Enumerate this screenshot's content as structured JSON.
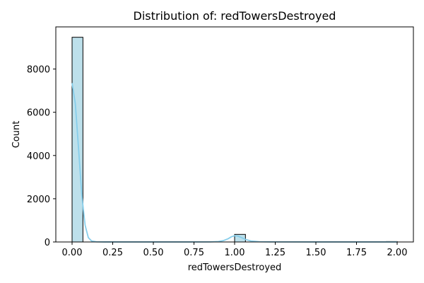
{
  "chart_data": {
    "type": "bar",
    "title": "Distribution of: redTowersDestroyed",
    "xlabel": "redTowersDestroyed",
    "ylabel": "Count",
    "xlim": [
      -0.1,
      2.1
    ],
    "ylim": [
      0,
      9950
    ],
    "xticks": [
      "0.00",
      "0.25",
      "0.50",
      "0.75",
      "1.00",
      "1.25",
      "1.50",
      "1.75",
      "2.00"
    ],
    "yticks": [
      "0",
      "2000",
      "4000",
      "6000",
      "8000"
    ],
    "bins": [
      {
        "x0": 0.0,
        "x1": 0.0667,
        "count": 9470
      },
      {
        "x0": 1.0,
        "x1": 1.0667,
        "count": 350
      },
      {
        "x0": 1.9333,
        "x1": 2.0,
        "count": 20
      }
    ],
    "kde": {
      "x": [
        0.0,
        0.02,
        0.04,
        0.06,
        0.08,
        0.1,
        0.12,
        0.15,
        0.2,
        0.3,
        0.5,
        0.7,
        0.85,
        0.9,
        0.93,
        0.96,
        0.98,
        1.0,
        1.02,
        1.04,
        1.07,
        1.1,
        1.15,
        1.25,
        1.5,
        1.8,
        2.0
      ],
      "y": [
        7350,
        6400,
        4300,
        2150,
        780,
        200,
        45,
        8,
        2,
        2,
        2,
        2,
        5,
        20,
        60,
        150,
        240,
        290,
        270,
        210,
        110,
        45,
        12,
        4,
        2,
        2,
        2
      ]
    },
    "bar_color": "#add8e6",
    "bar_edge_color": "#000000",
    "kde_color": "#87ceeb",
    "grid": false
  }
}
